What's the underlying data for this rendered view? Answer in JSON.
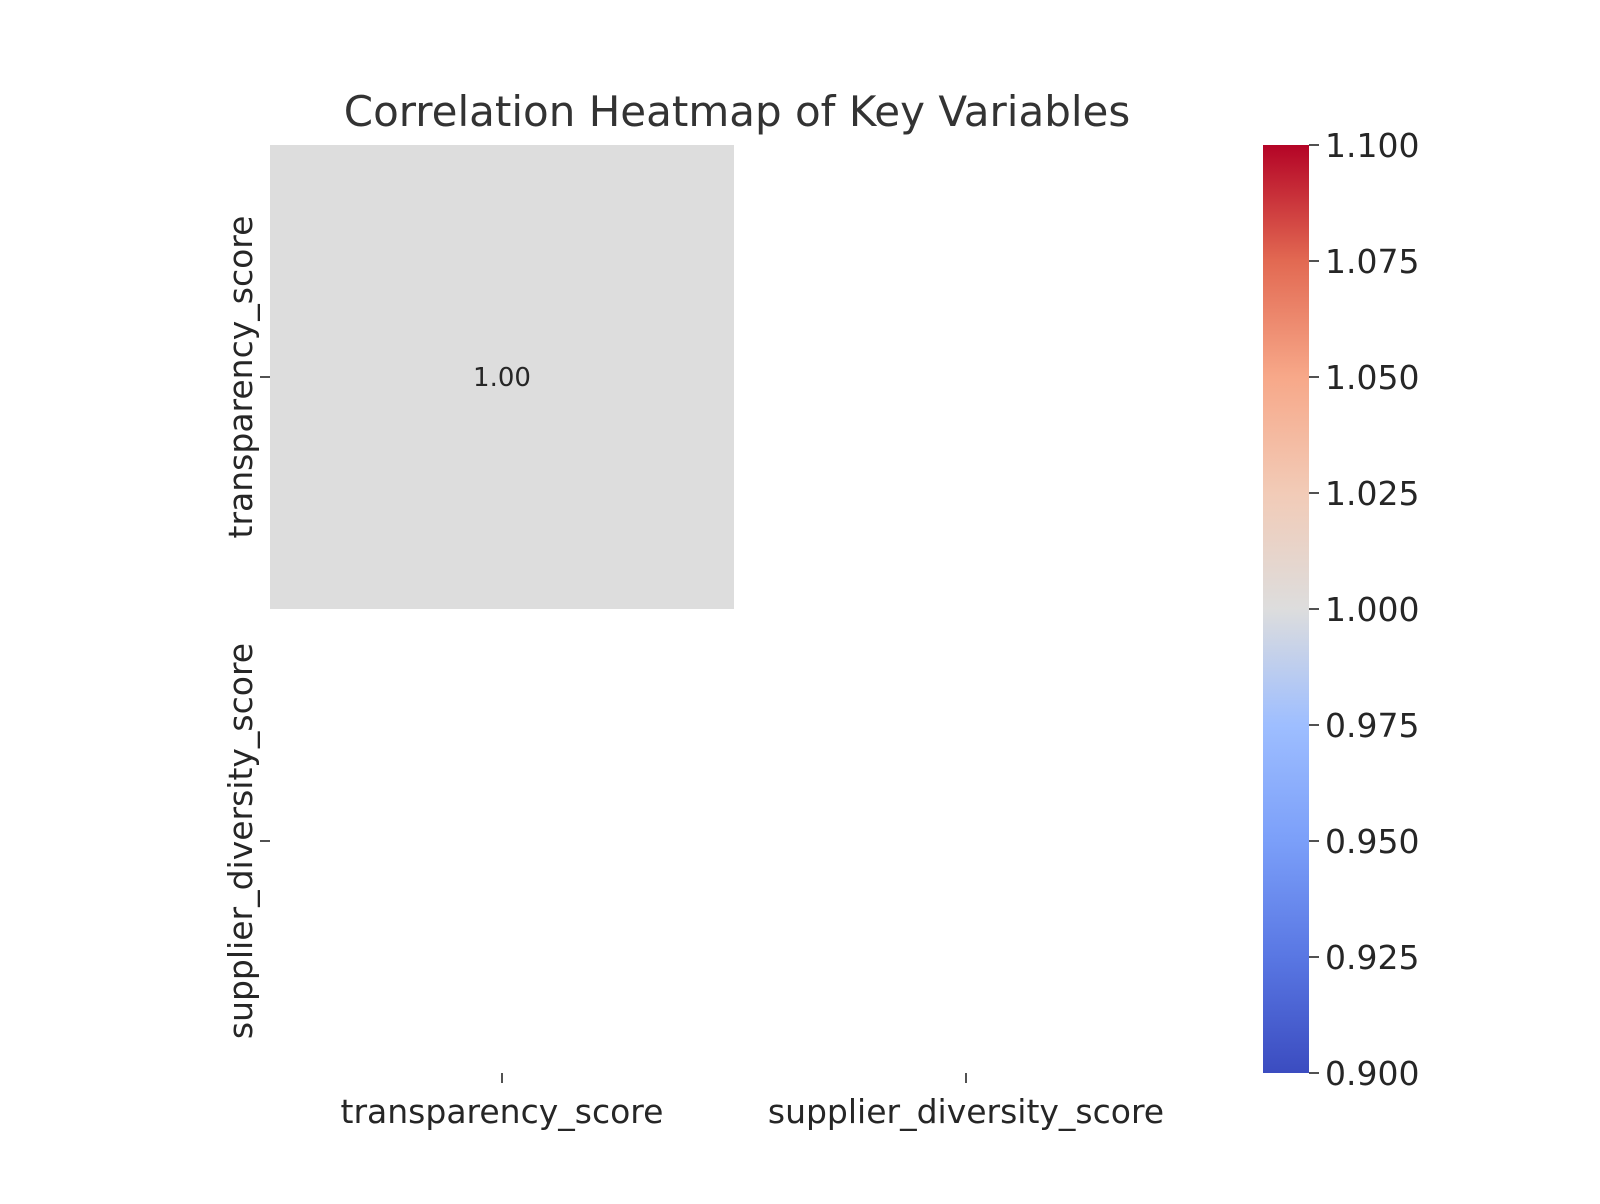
{
  "chart_data": {
    "type": "heatmap",
    "title": "Correlation Heatmap of Key Variables",
    "x_categories": [
      "transparency_score",
      "supplier_diversity_score"
    ],
    "y_categories": [
      "transparency_score",
      "supplier_diversity_score"
    ],
    "matrix": [
      [
        1.0,
        null
      ],
      [
        null,
        null
      ]
    ],
    "annotations": [
      [
        "1.00",
        ""
      ],
      [
        "",
        ""
      ]
    ],
    "colorbar": {
      "colormap": "coolwarm",
      "min": 0.9,
      "max": 1.1,
      "ticks": [
        0.9,
        0.925,
        0.95,
        0.975,
        1.0,
        1.025,
        1.05,
        1.075,
        1.1
      ],
      "tick_labels": [
        "0.900",
        "0.925",
        "0.950",
        "0.975",
        "1.000",
        "1.025",
        "1.050",
        "1.075",
        "1.100"
      ]
    },
    "grid": false,
    "colors": {
      "cmap_low": "#3b4cc0",
      "cmap_mid": "#dddddd",
      "cmap_high": "#b40426"
    }
  }
}
